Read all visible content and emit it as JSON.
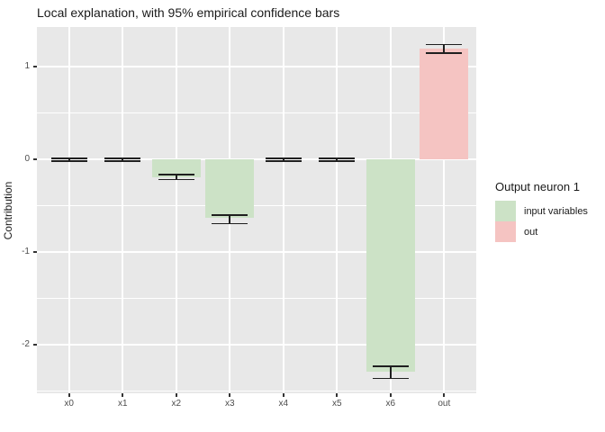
{
  "chart_data": {
    "type": "bar",
    "title": "Local explanation, with 95% empirical confidence bars",
    "xlabel": "",
    "ylabel": "Contribution",
    "categories": [
      "x0",
      "x1",
      "x2",
      "x3",
      "x4",
      "x5",
      "x6",
      "out"
    ],
    "values": [
      0,
      0,
      -0.19,
      -0.63,
      0,
      0,
      -2.29,
      1.2
    ],
    "error_low": [
      -0.015,
      -0.015,
      -0.215,
      -0.69,
      -0.015,
      -0.015,
      -2.36,
      1.15
    ],
    "error_high": [
      0.015,
      0.015,
      -0.16,
      -0.6,
      0.015,
      0.015,
      -2.23,
      1.24
    ],
    "series_group": [
      "input variables",
      "input variables",
      "input variables",
      "input variables",
      "input variables",
      "input variables",
      "input variables",
      "out"
    ],
    "yticks": [
      1,
      0,
      -1,
      -2
    ],
    "yticks_minor": [
      0.5,
      -0.5,
      -1.5,
      -2.5
    ],
    "ylim": [
      -2.52,
      1.43
    ],
    "grid": true,
    "legend_position": "right"
  },
  "legend": {
    "title": "Output neuron 1",
    "items": [
      {
        "label": "input variables",
        "color": "#cce2c6"
      },
      {
        "label": "out",
        "color": "#f5c4c2"
      }
    ]
  },
  "colors": {
    "panel_bg": "#e8e8e8",
    "grid": "#ffffff",
    "axis_text": "#4d4d4d",
    "tick_mark": "#333333",
    "title_text": "#1a1a1a",
    "errorbar": "#1f1f1f"
  }
}
